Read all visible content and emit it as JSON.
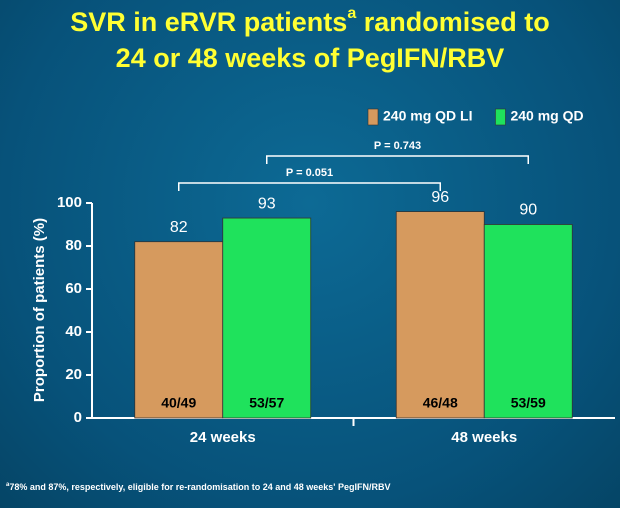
{
  "chart_data": {
    "type": "bar",
    "title_start": "SVR in eRVR patients",
    "title_sup": "a",
    "title_end": " randomised to",
    "title_line2": "24 or 48 weeks of PegIFN/RBV",
    "y_label": "Proportion of patients (%)",
    "categories": [
      "24 weeks",
      "48 weeks"
    ],
    "series": [
      {
        "name": "240 mg QD LI",
        "color": "#d69a5e",
        "values": [
          82,
          96
        ],
        "counts": [
          "40/49",
          "46/48"
        ]
      },
      {
        "name": "240 mg QD",
        "color": "#1fe25c",
        "values": [
          93,
          90
        ],
        "counts": [
          "53/57",
          "53/59"
        ]
      }
    ],
    "annotations": [
      "P = 0.051",
      "P = 0.743"
    ],
    "ylim": [
      0,
      100
    ],
    "yticks": [
      0,
      20,
      40,
      60,
      80,
      100
    ],
    "grid": false,
    "legend": "top-right",
    "footnote_sup": "a",
    "footnote": "78% and 87%, respectively, eligible for re-randomisation to 24 and 48 weeks' PegIFN/RBV"
  }
}
